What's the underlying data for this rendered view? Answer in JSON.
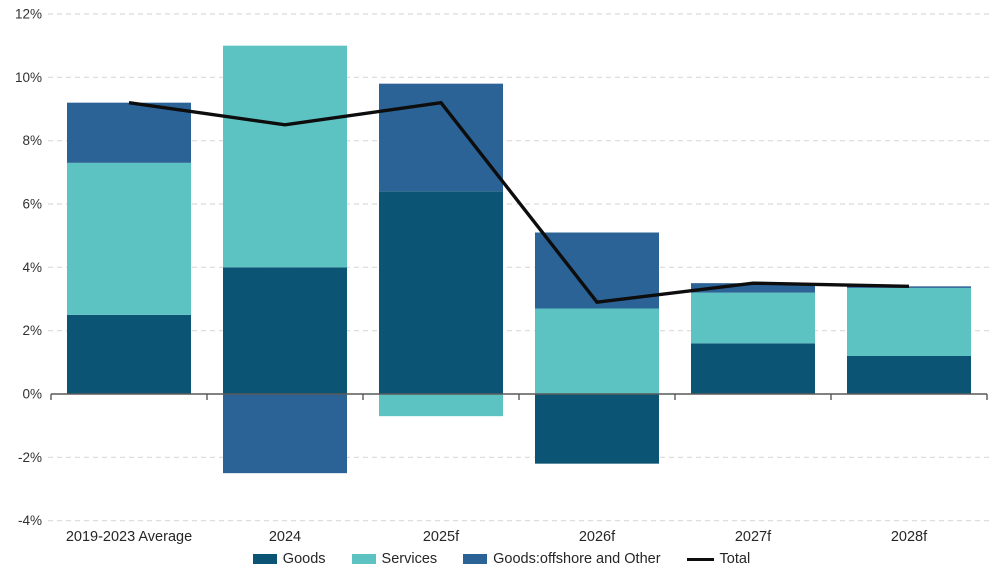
{
  "chart_data": {
    "type": "bar",
    "subtype": "stacked-bar-with-line",
    "title": "",
    "xlabel": "",
    "ylabel": "",
    "categories": [
      "2019-2023 Average",
      "2024",
      "2025f",
      "2026f",
      "2027f",
      "2028f"
    ],
    "series": [
      {
        "name": "Goods",
        "color": "#0c5474",
        "values": [
          2.5,
          4.0,
          6.4,
          -2.2,
          1.6,
          1.2
        ]
      },
      {
        "name": "Services",
        "color": "#5cc3c2",
        "values": [
          4.8,
          7.0,
          -0.7,
          2.7,
          1.6,
          2.15
        ]
      },
      {
        "name": "Goods:offshore and Other",
        "color": "#2c6396",
        "values": [
          1.9,
          -2.5,
          3.4,
          2.4,
          0.3,
          0.05
        ]
      }
    ],
    "line_series": {
      "name": "Total",
      "color": "#0d0d0d",
      "values": [
        9.2,
        8.5,
        9.2,
        2.9,
        3.5,
        3.4
      ]
    },
    "ylim": [
      -4,
      12
    ],
    "ytick_values": [
      12,
      10,
      8,
      6,
      4,
      2,
      0,
      -2,
      -4
    ],
    "ytick_labels": [
      "12%",
      "10%",
      "8%",
      "6%",
      "4%",
      "2%",
      "0%",
      "-2%",
      "-4%"
    ],
    "grid": "horizontal-dashed",
    "legend_position": "bottom-center",
    "colors": {
      "gridline": "#d9d9d9",
      "zero_axis": "#595959",
      "tick_label": "#303030",
      "x_label": "#262626",
      "background": "#ffffff"
    }
  }
}
